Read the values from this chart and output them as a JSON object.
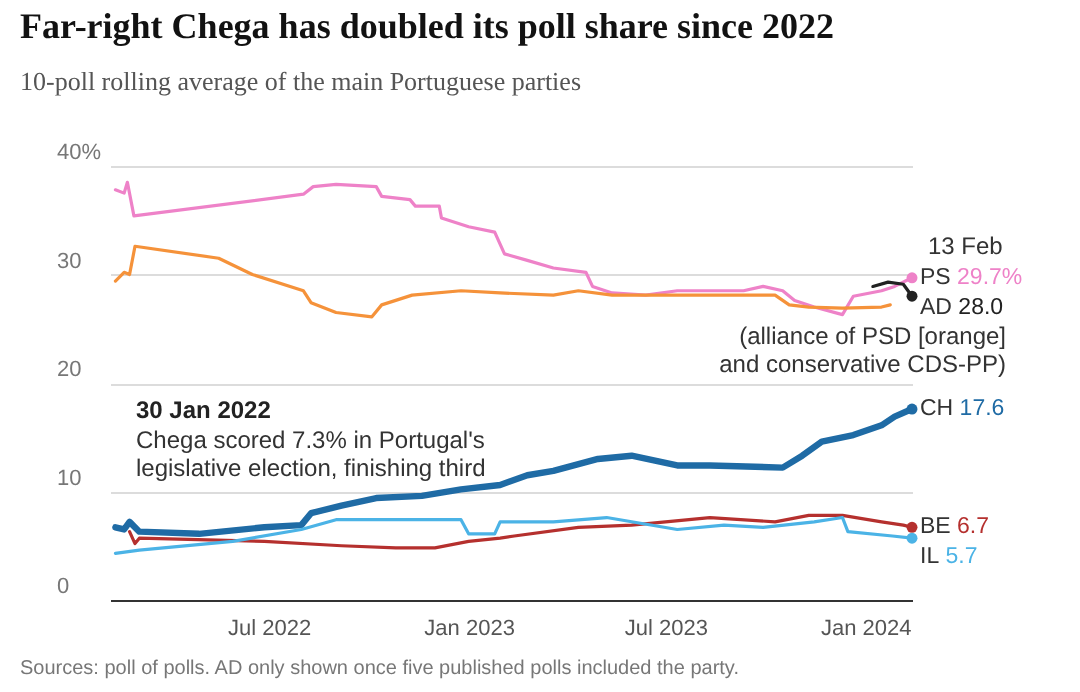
{
  "chart_data": {
    "type": "line",
    "title": "Far-right Chega has doubled its poll share since 2022",
    "subtitle": "10-poll rolling average of the main Portuguese parties",
    "annotations": [
      {
        "text": "13 Feb",
        "x": "2024-02-13",
        "y": 29.7
      },
      "(alliance of PSD [orange]",
      "and conservative CDS-PP)",
      "30 Jan 2022",
      "Chega scored 7.3% in Portugal's",
      "legislative election, finishing third",
      "Sources: poll of polls. AD only shown once five published polls included the party."
    ],
    "xlim": [
      "2022-02-05",
      "2024-02-13"
    ],
    "xticks": [
      {
        "value": "2022-07-01",
        "label": "Jul 2022"
      },
      {
        "value": "2023-01-01",
        "label": "Jan 2023"
      },
      {
        "value": "2023-07-01",
        "label": "Jul 2023"
      },
      {
        "value": "2024-01-01",
        "label": "Jan 2024"
      }
    ],
    "ylim": [
      0,
      40
    ],
    "yticks": [
      0,
      10,
      20,
      30,
      {
        "value": 40,
        "label": "40%"
      }
    ],
    "grid": "y",
    "series": [
      {
        "name": "PS",
        "color": "#ee82c8",
        "x": [
          "2022-02-10",
          "2022-02-18",
          "2022-02-21",
          "2022-02-27",
          "2022-08-02",
          "2022-08-11",
          "2022-09-01",
          "2022-10-08",
          "2022-10-13",
          "2022-11-08",
          "2022-11-13",
          "2022-12-05",
          "2022-12-07",
          "2023-01-01",
          "2023-01-25",
          "2023-02-03",
          "2023-02-24",
          "2023-03-20",
          "2023-04-19",
          "2023-04-25",
          "2023-05-13",
          "2023-06-13",
          "2023-07-12",
          "2023-09-11",
          "2023-09-29",
          "2023-10-17",
          "2023-10-28",
          "2023-11-15",
          "2023-12-11",
          "2023-12-21",
          "2024-01-16",
          "2024-01-28",
          "2024-02-13"
        ],
        "values": [
          37.8,
          37.5,
          38.5,
          35.4,
          37.4,
          38.1,
          38.3,
          38.1,
          37.2,
          36.9,
          36.3,
          36.3,
          35.2,
          34.4,
          33.9,
          31.9,
          31.3,
          30.6,
          30.2,
          28.9,
          28.3,
          28.1,
          28.5,
          28.5,
          28.9,
          28.5,
          27.6,
          27.0,
          26.3,
          28.0,
          28.5,
          28.9,
          29.7
        ],
        "value_labels": [
          null,
          null,
          null,
          null,
          null,
          null,
          null,
          null,
          null,
          null,
          null,
          null,
          null,
          null,
          null,
          null,
          null,
          null,
          null,
          null,
          null,
          null,
          null,
          null,
          null,
          null,
          null,
          null,
          null,
          null,
          null,
          null,
          "29.7%"
        ]
      },
      {
        "color": "#f5923a",
        "x": [
          "2022-02-10",
          "2022-02-18",
          "2022-02-23",
          "2022-02-28",
          "2022-05-16",
          "2022-06-16",
          "2022-08-02",
          "2022-08-09",
          "2022-09-01",
          "2022-10-04",
          "2022-10-13",
          "2022-11-10",
          "2022-12-25",
          "2023-01-30",
          "2023-03-20",
          "2023-04-12",
          "2023-05-13",
          "2023-10-10",
          "2023-10-23",
          "2023-11-10",
          "2023-12-11",
          "2024-01-16",
          "2024-01-24"
        ],
        "values": [
          29.4,
          30.2,
          30.0,
          32.6,
          31.5,
          30.0,
          28.5,
          27.4,
          26.5,
          26.1,
          27.2,
          28.1,
          28.5,
          28.3,
          28.1,
          28.5,
          28.1,
          28.1,
          27.2,
          27.0,
          26.9,
          27.0,
          27.2
        ]
      },
      {
        "name": "AD",
        "color": "#222222",
        "x": [
          "2024-01-08",
          "2024-01-22",
          "2024-02-05",
          "2024-02-13"
        ],
        "values": [
          28.9,
          29.3,
          29.1,
          28.0
        ],
        "value_labels": [
          null,
          null,
          null,
          "28.0"
        ]
      },
      {
        "name": "CH",
        "color": "#1f6ba5",
        "x": [
          "2022-02-10",
          "2022-02-18",
          "2022-02-23",
          "2022-03-04",
          "2022-04-28",
          "2022-06-27",
          "2022-07-31",
          "2022-08-09",
          "2022-09-06",
          "2022-10-08",
          "2022-11-19",
          "2022-12-25",
          "2023-01-30",
          "2023-02-24",
          "2023-03-20",
          "2023-04-30",
          "2023-05-31",
          "2023-07-12",
          "2023-08-11",
          "2023-10-17",
          "2023-11-04",
          "2023-11-22",
          "2023-12-21",
          "2024-01-16",
          "2024-01-28",
          "2024-02-13"
        ],
        "values": [
          6.7,
          6.5,
          7.2,
          6.3,
          6.1,
          6.7,
          6.9,
          8.0,
          8.7,
          9.4,
          9.6,
          10.2,
          10.6,
          11.5,
          11.9,
          13.0,
          13.3,
          12.4,
          12.4,
          12.2,
          13.3,
          14.6,
          15.2,
          16.1,
          16.9,
          17.6
        ],
        "value_labels": [
          null,
          null,
          null,
          null,
          null,
          null,
          null,
          null,
          null,
          null,
          null,
          null,
          null,
          null,
          null,
          null,
          null,
          null,
          null,
          null,
          null,
          null,
          null,
          null,
          null,
          "17.6"
        ]
      },
      {
        "name": "BE",
        "color": "#b5302e",
        "x": [
          "2022-02-23",
          "2022-02-28",
          "2022-03-04",
          "2022-06-27",
          "2022-09-06",
          "2022-10-26",
          "2022-12-01",
          "2023-01-01",
          "2023-01-30",
          "2023-02-12",
          "2023-04-12",
          "2023-05-31",
          "2023-08-11",
          "2023-10-10",
          "2023-11-10",
          "2023-12-11",
          "2024-01-16",
          "2024-02-05",
          "2024-02-13"
        ],
        "values": [
          6.3,
          5.2,
          5.7,
          5.4,
          5.0,
          4.8,
          4.8,
          5.4,
          5.7,
          5.9,
          6.7,
          6.9,
          7.6,
          7.2,
          7.8,
          7.8,
          7.2,
          6.9,
          6.7
        ],
        "value_labels": [
          null,
          null,
          null,
          null,
          null,
          null,
          null,
          null,
          null,
          null,
          null,
          null,
          null,
          null,
          null,
          null,
          null,
          null,
          "6.7"
        ]
      },
      {
        "name": "IL",
        "color": "#4bb3e6",
        "x": [
          "2022-02-10",
          "2022-03-04",
          "2022-05-29",
          "2022-07-31",
          "2022-09-01",
          "2022-10-08",
          "2022-12-25",
          "2023-01-01",
          "2023-01-25",
          "2023-01-30",
          "2023-03-20",
          "2023-05-08",
          "2023-07-12",
          "2023-08-24",
          "2023-09-29",
          "2023-11-15",
          "2023-12-11",
          "2023-12-16",
          "2024-01-26",
          "2024-02-13"
        ],
        "values": [
          4.3,
          4.6,
          5.4,
          6.5,
          7.4,
          7.4,
          7.4,
          6.1,
          6.1,
          7.2,
          7.2,
          7.6,
          6.5,
          6.9,
          6.7,
          7.2,
          7.6,
          6.3,
          5.9,
          5.7
        ],
        "value_labels": [
          null,
          null,
          null,
          null,
          null,
          null,
          null,
          null,
          null,
          null,
          null,
          null,
          null,
          null,
          null,
          null,
          null,
          null,
          null,
          "5.7"
        ]
      }
    ]
  }
}
